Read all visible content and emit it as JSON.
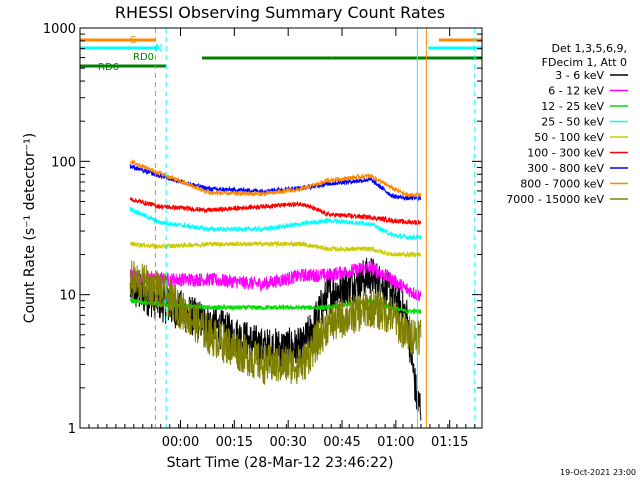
{
  "chart_data": {
    "type": "line",
    "title": "RHESSI Observing Summary Count Rates",
    "xlabel": "Start Time (28-Mar-12 23:46:22)",
    "ylabel": "Count Rate (s⁻¹ detector⁻¹)",
    "yscale": "log",
    "ylim": [
      1,
      1000
    ],
    "xlim_minutes": [
      -14,
      98
    ],
    "y_ticks": [
      {
        "value": 1,
        "label": "1"
      },
      {
        "value": 10,
        "label": "10"
      },
      {
        "value": 100,
        "label": "100"
      },
      {
        "value": 1000,
        "label": "1000"
      }
    ],
    "x_ticks": [
      {
        "value": 14,
        "label": "00:00"
      },
      {
        "value": 29,
        "label": "00:15"
      },
      {
        "value": 44,
        "label": "00:30"
      },
      {
        "value": 59,
        "label": "00:45"
      },
      {
        "value": 74,
        "label": "01:00"
      },
      {
        "value": 89,
        "label": "01:15"
      }
    ],
    "legend_header": [
      "Det 1,3,5,6,9,",
      "FDecim 1, Att 0"
    ],
    "series": [
      {
        "name": "3 - 6 keV",
        "color": "#000000",
        "key": [
          [
            0,
            11
          ],
          [
            8,
            9
          ],
          [
            22,
            6
          ],
          [
            37,
            4
          ],
          [
            48,
            4
          ],
          [
            55,
            10
          ],
          [
            67,
            14
          ],
          [
            73,
            10
          ],
          [
            77,
            7
          ],
          [
            80,
            1.5
          ],
          [
            81,
            1.5
          ]
        ]
      },
      {
        "name": "6 - 12 keV",
        "color": "#ff00ff",
        "key": [
          [
            0,
            14
          ],
          [
            8,
            13
          ],
          [
            22,
            13
          ],
          [
            37,
            12
          ],
          [
            48,
            14
          ],
          [
            55,
            14
          ],
          [
            67,
            16
          ],
          [
            73,
            13
          ],
          [
            77,
            11
          ],
          [
            80,
            10
          ],
          [
            81,
            10
          ]
        ]
      },
      {
        "name": "12 - 25 keV",
        "color": "#00dd00",
        "key": [
          [
            0,
            9
          ],
          [
            8,
            8.5
          ],
          [
            22,
            8
          ],
          [
            37,
            8
          ],
          [
            48,
            8
          ],
          [
            55,
            8
          ],
          [
            67,
            9
          ],
          [
            73,
            8
          ],
          [
            77,
            7.5
          ],
          [
            80,
            7.5
          ],
          [
            81,
            7.5
          ]
        ]
      },
      {
        "name": "25 - 50 keV",
        "color": "#00ffff",
        "key": [
          [
            0,
            44
          ],
          [
            8,
            35
          ],
          [
            22,
            31
          ],
          [
            37,
            31
          ],
          [
            48,
            34
          ],
          [
            55,
            36
          ],
          [
            67,
            34
          ],
          [
            73,
            28
          ],
          [
            77,
            27
          ],
          [
            80,
            27
          ],
          [
            81,
            27
          ]
        ]
      },
      {
        "name": "50 - 100 keV",
        "color": "#cccc00",
        "key": [
          [
            0,
            24
          ],
          [
            8,
            23
          ],
          [
            22,
            24
          ],
          [
            37,
            24
          ],
          [
            48,
            24
          ],
          [
            55,
            22
          ],
          [
            67,
            22
          ],
          [
            73,
            20
          ],
          [
            77,
            20
          ],
          [
            80,
            20
          ],
          [
            81,
            20
          ]
        ]
      },
      {
        "name": "100 - 300 keV",
        "color": "#ff0000",
        "key": [
          [
            0,
            52
          ],
          [
            8,
            46
          ],
          [
            22,
            43
          ],
          [
            37,
            46
          ],
          [
            48,
            48
          ],
          [
            55,
            40
          ],
          [
            67,
            38
          ],
          [
            73,
            36
          ],
          [
            77,
            35
          ],
          [
            80,
            35
          ],
          [
            81,
            35
          ]
        ]
      },
      {
        "name": "300 - 800 keV",
        "color": "#0000ff",
        "key": [
          [
            0,
            92
          ],
          [
            8,
            78
          ],
          [
            22,
            62
          ],
          [
            37,
            60
          ],
          [
            48,
            63
          ],
          [
            55,
            68
          ],
          [
            67,
            73
          ],
          [
            73,
            55
          ],
          [
            77,
            53
          ],
          [
            80,
            53
          ],
          [
            81,
            53
          ]
        ]
      },
      {
        "name": "800 - 7000 keV",
        "color": "#ff8800",
        "key": [
          [
            0,
            100
          ],
          [
            8,
            82
          ],
          [
            22,
            58
          ],
          [
            37,
            57
          ],
          [
            48,
            62
          ],
          [
            55,
            72
          ],
          [
            67,
            78
          ],
          [
            73,
            63
          ],
          [
            77,
            56
          ],
          [
            80,
            56
          ],
          [
            81,
            56
          ]
        ]
      },
      {
        "name": "7000 - 15000 keV",
        "color": "#808000",
        "key": [
          [
            0,
            13
          ],
          [
            8,
            11
          ],
          [
            22,
            5
          ],
          [
            37,
            3
          ],
          [
            48,
            3
          ],
          [
            55,
            6
          ],
          [
            67,
            8
          ],
          [
            73,
            7
          ],
          [
            77,
            5
          ],
          [
            80,
            5
          ],
          [
            81,
            5
          ]
        ]
      }
    ],
    "flags": [
      {
        "label": "S",
        "color": "#ff8800",
        "segments": [
          [
            -14,
            7
          ],
          [
            86,
            98
          ]
        ]
      },
      {
        "label": "N",
        "color": "#00ffff",
        "segments": [
          [
            -14,
            8
          ],
          [
            83,
            98
          ]
        ]
      },
      {
        "label": "RD0",
        "color": "#008000",
        "segments": [
          [
            20,
            56
          ],
          [
            56,
            70
          ],
          [
            70,
            98
          ]
        ]
      },
      {
        "label": "RD6",
        "color": "#008000",
        "segments": [
          [
            -14,
            10
          ]
        ]
      }
    ],
    "vertical_markers": [
      {
        "minute": -14,
        "color": "#00ffff",
        "style": "solid"
      },
      {
        "minute": 7,
        "color": "#ff8800",
        "style": "dashed"
      },
      {
        "minute": 10,
        "color": "#00ffff",
        "style": "dashed"
      },
      {
        "minute": 80,
        "color": "#00ffff",
        "style": "solid"
      },
      {
        "minute": 82.5,
        "color": "#ff8800",
        "style": "solid"
      },
      {
        "minute": 96,
        "color": "#00ffff",
        "style": "dashed"
      },
      {
        "minute": 98,
        "color": "#ff8800",
        "style": "dashed"
      }
    ],
    "data_segments_minutes": [
      [
        0,
        19
      ],
      [
        19,
        50
      ],
      [
        50,
        70
      ],
      [
        70,
        81
      ]
    ],
    "grid": false
  },
  "footer": {
    "timestamp": "19-Oct-2021 23:00"
  }
}
